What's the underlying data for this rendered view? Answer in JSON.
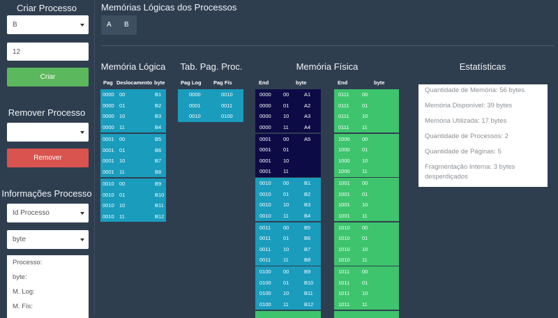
{
  "sidebar": {
    "create": {
      "title": "Criar Processo",
      "select_value": "B",
      "input_value": "12",
      "button": "Criar"
    },
    "remove": {
      "title": "Remover Processo",
      "button": "Remover"
    },
    "info": {
      "title": "Informações Processo",
      "select_process": "Id Processo",
      "select_unit": "byte",
      "fields": [
        "Processo:",
        "byte:",
        "M. Log:",
        "M. Fís:"
      ]
    }
  },
  "main": {
    "title": "Memórias Lógicas dos Processos",
    "tabs": [
      "A",
      "B"
    ]
  },
  "logical_memory": {
    "title": "Memória Lógica",
    "color": "#1a9cbd",
    "headers": [
      "Pag",
      "Deslocamento",
      "byte"
    ],
    "rows": [
      [
        "0000",
        "00",
        "B1"
      ],
      [
        "0000",
        "01",
        "B2"
      ],
      [
        "0000",
        "10",
        "B3"
      ],
      [
        "0000",
        "11",
        "B4"
      ],
      [
        "0001",
        "00",
        "B5"
      ],
      [
        "0001",
        "01",
        "B6"
      ],
      [
        "0001",
        "10",
        "B7"
      ],
      [
        "0001",
        "11",
        "B8"
      ],
      [
        "0010",
        "00",
        "B9"
      ],
      [
        "0010",
        "01",
        "B10"
      ],
      [
        "0010",
        "10",
        "B11"
      ],
      [
        "0010",
        "11",
        "B12"
      ]
    ]
  },
  "page_table": {
    "title": "Tab. Pag. Proc.",
    "color": "#1a9cbd",
    "headers": [
      "Pag Log",
      "Pag Fís"
    ],
    "rows": [
      [
        "0000",
        "0010"
      ],
      [
        "0001",
        "0011"
      ],
      [
        "0010",
        "0100"
      ]
    ]
  },
  "physical_memory": {
    "title": "Memória Física",
    "headers": [
      "End",
      "byte",
      "End",
      "byte"
    ],
    "columns": [
      [
        {
          "color": "#0d0b45",
          "rows": [
            [
              "0000",
              "00",
              "A1"
            ],
            [
              "0000",
              "01",
              "A2"
            ],
            [
              "0000",
              "10",
              "A3"
            ],
            [
              "0000",
              "11",
              "A4"
            ]
          ]
        },
        {
          "color": "#0d0b45",
          "rows": [
            [
              "0001",
              "00",
              "A5"
            ],
            [
              "0001",
              "01"
            ],
            [
              "0001",
              "10"
            ],
            [
              "0001",
              "11"
            ]
          ]
        },
        {
          "color": "#1a9cbd",
          "rows": [
            [
              "0010",
              "00",
              "B1"
            ],
            [
              "0010",
              "01",
              "B2"
            ],
            [
              "0010",
              "10",
              "B3"
            ],
            [
              "0010",
              "11",
              "B4"
            ]
          ]
        },
        {
          "color": "#1a9cbd",
          "rows": [
            [
              "0011",
              "00",
              "B5"
            ],
            [
              "0011",
              "01",
              "B6"
            ],
            [
              "0011",
              "10",
              "B7"
            ],
            [
              "0011",
              "11",
              "B8"
            ]
          ]
        },
        {
          "color": "#1a9cbd",
          "rows": [
            [
              "0100",
              "00",
              "B9"
            ],
            [
              "0100",
              "01",
              "B10"
            ],
            [
              "0100",
              "10",
              "B11"
            ],
            [
              "0100",
              "11",
              "B12"
            ]
          ]
        }
      ],
      [
        {
          "color": "#3ec46d",
          "rows": [
            [
              "0111",
              "00"
            ],
            [
              "0111",
              "01"
            ],
            [
              "0111",
              "10"
            ],
            [
              "0111",
              "11"
            ]
          ]
        },
        {
          "color": "#3ec46d",
          "rows": [
            [
              "1000",
              "00"
            ],
            [
              "1000",
              "01"
            ],
            [
              "1000",
              "10"
            ],
            [
              "1000",
              "11"
            ]
          ]
        },
        {
          "color": "#3ec46d",
          "rows": [
            [
              "1001",
              "00"
            ],
            [
              "1001",
              "01"
            ],
            [
              "1001",
              "10"
            ],
            [
              "1001",
              "11"
            ]
          ]
        },
        {
          "color": "#3ec46d",
          "rows": [
            [
              "1010",
              "00"
            ],
            [
              "1010",
              "01"
            ],
            [
              "1010",
              "10"
            ],
            [
              "1010",
              "11"
            ]
          ]
        },
        {
          "color": "#3ec46d",
          "rows": [
            [
              "1011",
              "00"
            ],
            [
              "1011",
              "01"
            ],
            [
              "1011",
              "10"
            ],
            [
              "1011",
              "11"
            ]
          ]
        }
      ]
    ]
  },
  "stats": {
    "title": "Estatísticas",
    "items": [
      "Quantidade de Memória: 56 bytes",
      "Memória Disponível: 39 bytes",
      "Memória Utilizada: 17 bytes",
      "Quantidade de Processos: 2",
      "Quantidade de Páginas: 5",
      "Fragmentação Interna: 3 bytes desperdiçados"
    ]
  }
}
